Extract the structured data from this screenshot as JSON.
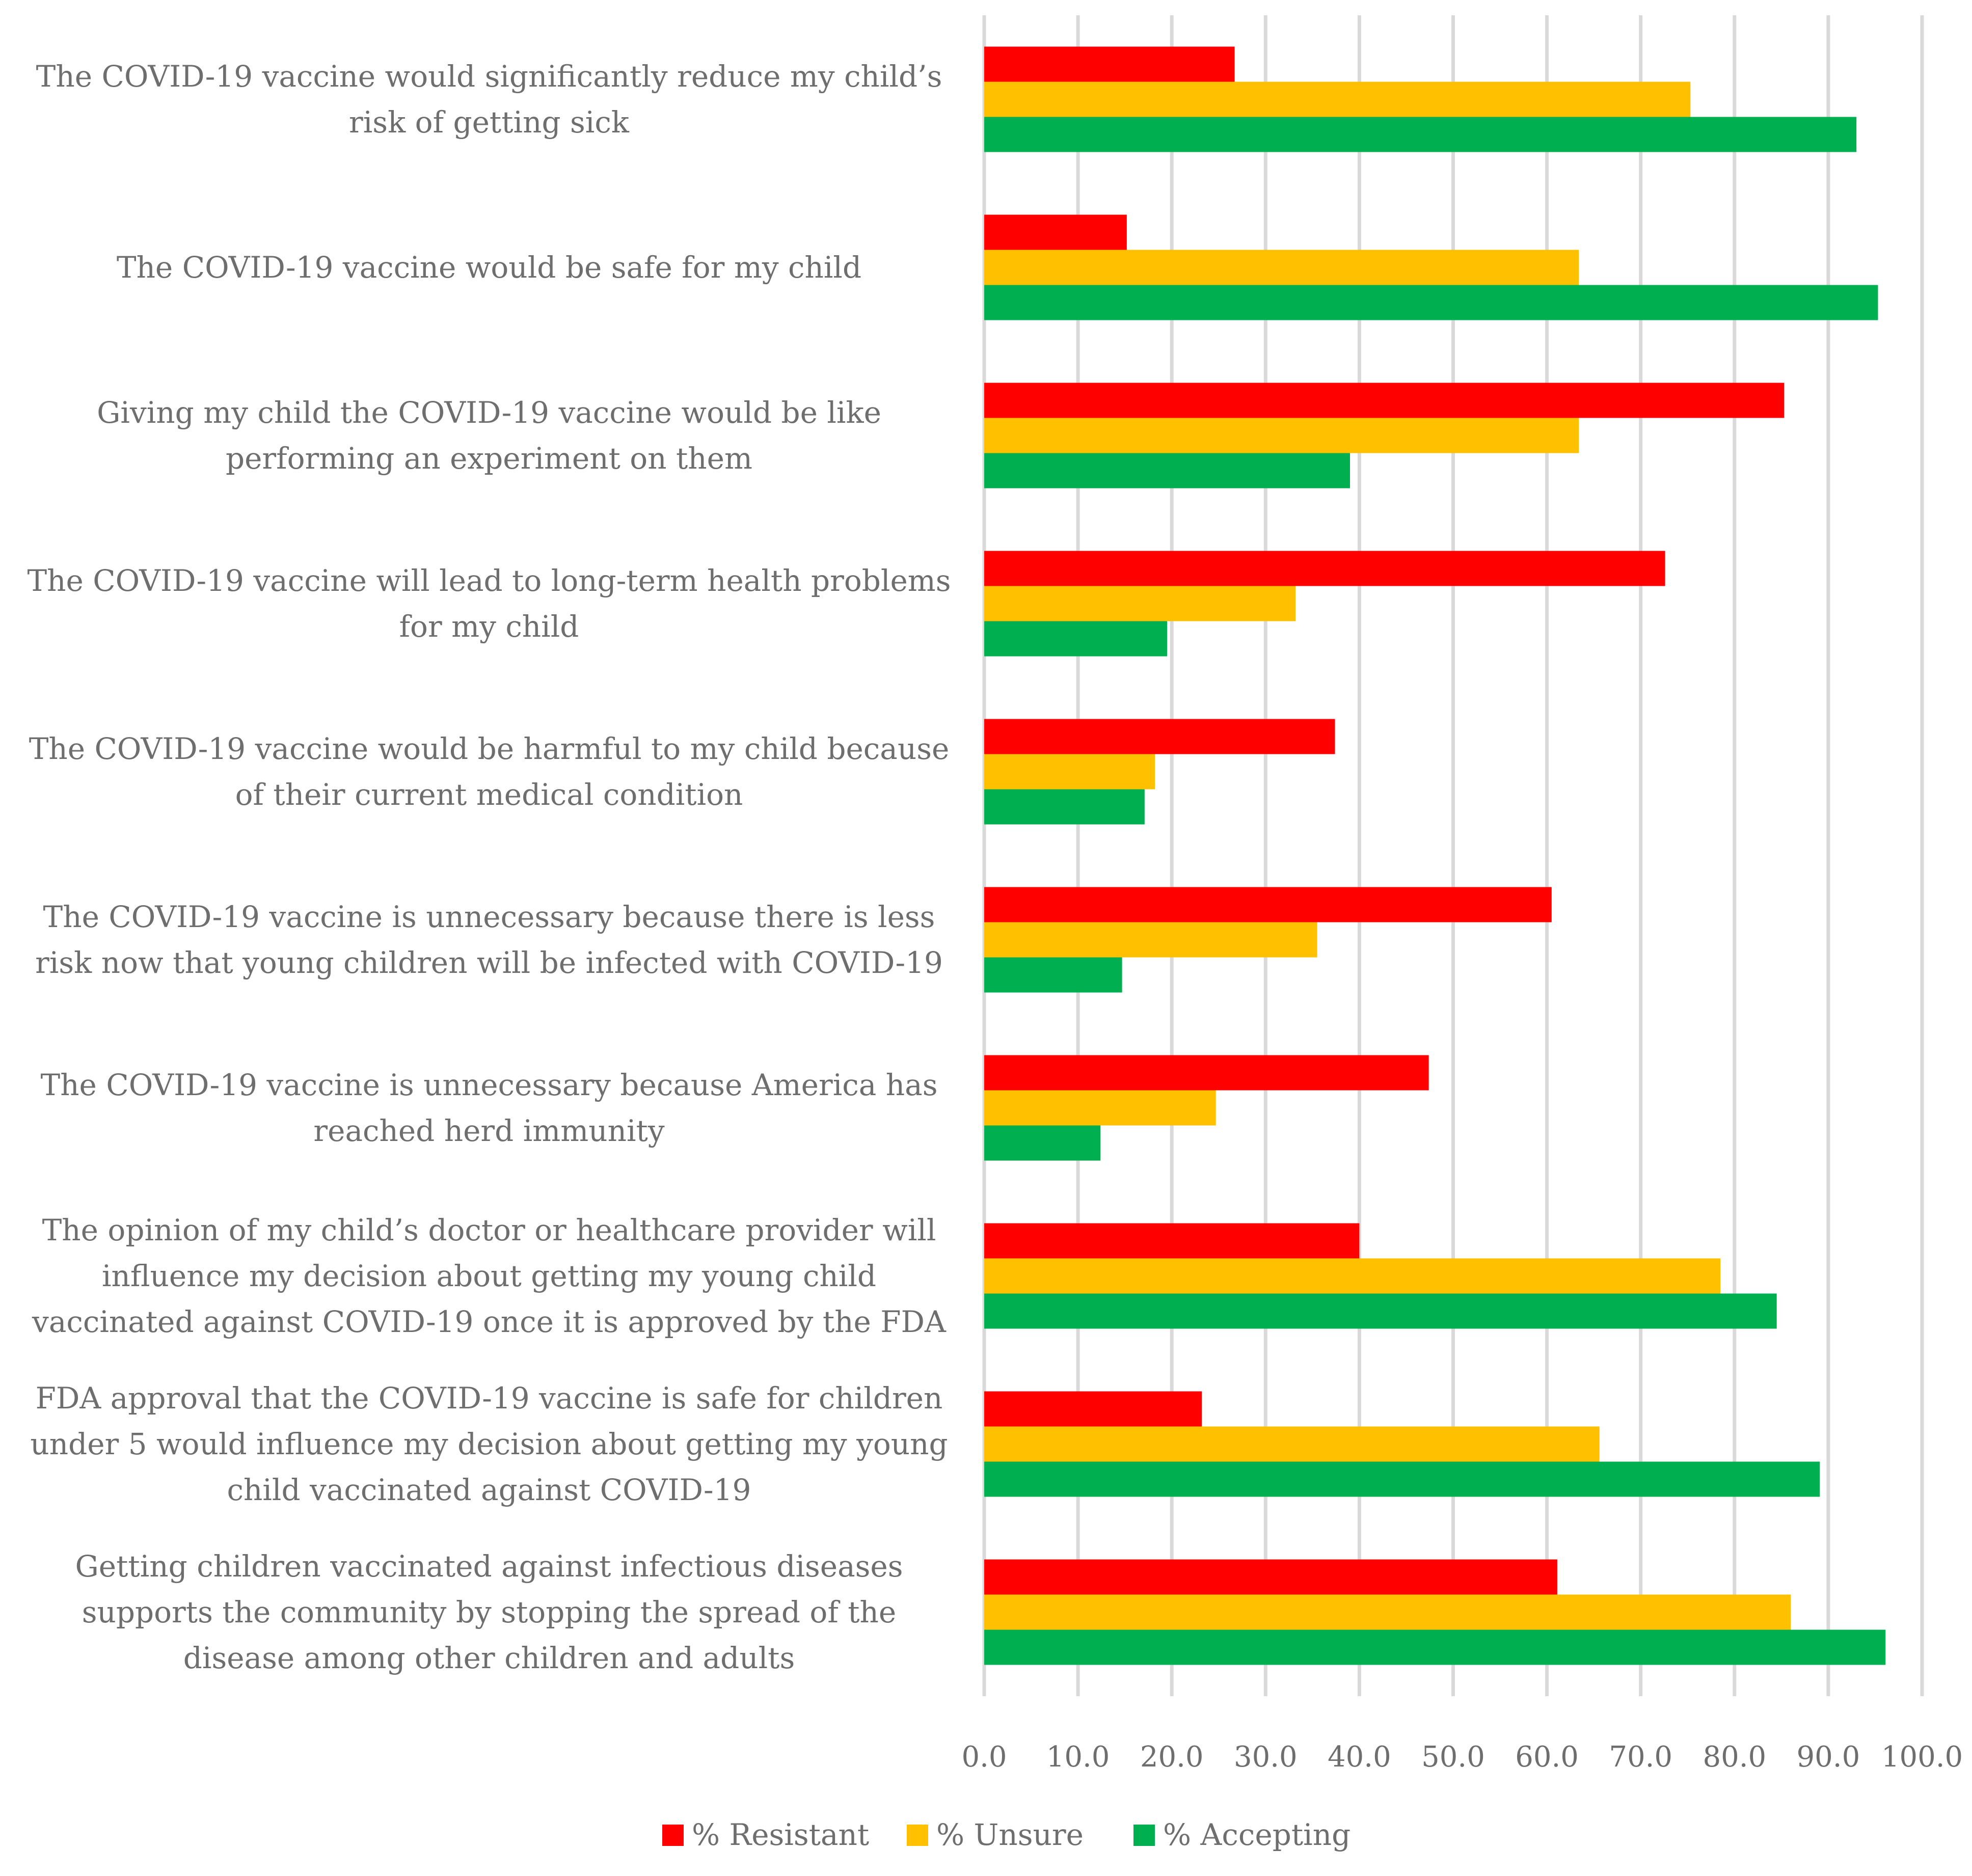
{
  "chart_data": {
    "type": "bar",
    "orientation": "horizontal",
    "title": "",
    "xlabel": "",
    "ylabel": "",
    "xlim": [
      0,
      100
    ],
    "x_ticks": [
      "0.0",
      "10.0",
      "20.0",
      "30.0",
      "40.0",
      "50.0",
      "60.0",
      "70.0",
      "80.0",
      "90.0",
      "100.0"
    ],
    "grid": true,
    "legend_position": "bottom",
    "categories": [
      [
        "The COVID-19 vaccine would significantly reduce my child’s",
        "risk of getting sick"
      ],
      [
        "The COVID-19 vaccine would be safe for my child"
      ],
      [
        "Giving my child the COVID-19 vaccine would be like",
        "performing an experiment on them"
      ],
      [
        "The COVID-19 vaccine will lead to long-term health problems",
        "for my child"
      ],
      [
        "The COVID-19 vaccine would be harmful to my child because",
        "of their current medical condition"
      ],
      [
        "The COVID-19 vaccine is unnecessary because there is less",
        "risk now that young children will be infected with COVID-19"
      ],
      [
        "The COVID-19 vaccine is unnecessary because America has",
        "reached herd immunity"
      ],
      [
        "The opinion of my child’s doctor or healthcare provider will",
        "influence my decision about getting my young child",
        "vaccinated against COVID-19 once it is approved by the FDA"
      ],
      [
        "FDA approval that the COVID-19 vaccine is safe for children",
        "under 5 would influence my decision about getting my young",
        "child vaccinated against COVID-19"
      ],
      [
        "Getting children vaccinated against infectious diseases",
        "supports the community by stopping the spread of the",
        "disease among other children and adults"
      ]
    ],
    "series": [
      {
        "name": "% Resistant",
        "color": "#ff0000",
        "values": [
          26.7,
          15.2,
          85.3,
          72.6,
          37.4,
          60.5,
          47.4,
          40.0,
          23.2,
          61.1
        ]
      },
      {
        "name": "% Unsure",
        "color": "#ffc000",
        "values": [
          75.3,
          63.4,
          63.4,
          33.2,
          18.2,
          35.5,
          24.7,
          78.5,
          65.6,
          86.0
        ]
      },
      {
        "name": "% Accepting",
        "color": "#00b050",
        "values": [
          93.0,
          95.3,
          39.0,
          19.5,
          17.1,
          14.7,
          12.4,
          84.5,
          89.1,
          96.1
        ]
      }
    ]
  }
}
